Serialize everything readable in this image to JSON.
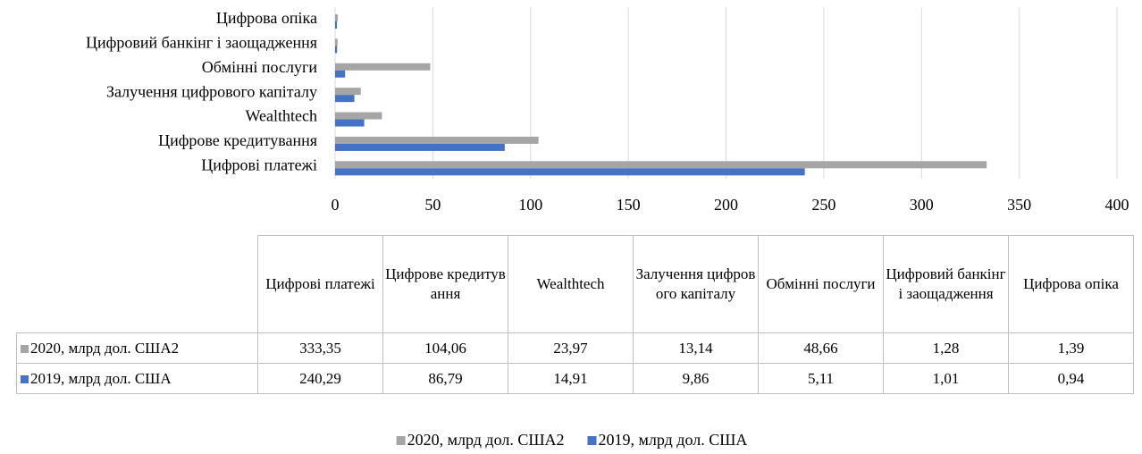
{
  "chart_data": {
    "type": "bar",
    "orientation": "horizontal",
    "categories": [
      "Цифрові платежі",
      "Цифрове кредитування",
      "Wealthtech",
      "Залучення цифрового капіталу",
      "Обмінні послуги",
      "Цифровий банкінг і заощадження",
      "Цифрова опіка"
    ],
    "series": [
      {
        "name": "2020, млрд дол. США2",
        "color": "#a5a5a5",
        "values": [
          333.35,
          104.06,
          23.97,
          13.14,
          48.66,
          1.28,
          1.39
        ],
        "value_labels": [
          "333,35",
          "104,06",
          "23,97",
          "13,14",
          "48,66",
          "1,28",
          "1,39"
        ]
      },
      {
        "name": "2019, млрд дол. США",
        "color": "#4472c4",
        "values": [
          240.29,
          86.79,
          14.91,
          9.86,
          5.11,
          1.01,
          0.94
        ],
        "value_labels": [
          "240,29",
          "86,79",
          "14,91",
          "9,86",
          "5,11",
          "1,01",
          "0,94"
        ]
      }
    ],
    "xlim": [
      0,
      400
    ],
    "xticks": [
      0,
      50,
      100,
      150,
      200,
      250,
      300,
      350,
      400
    ],
    "grid": true,
    "legend": "bottom",
    "data_table": true
  }
}
